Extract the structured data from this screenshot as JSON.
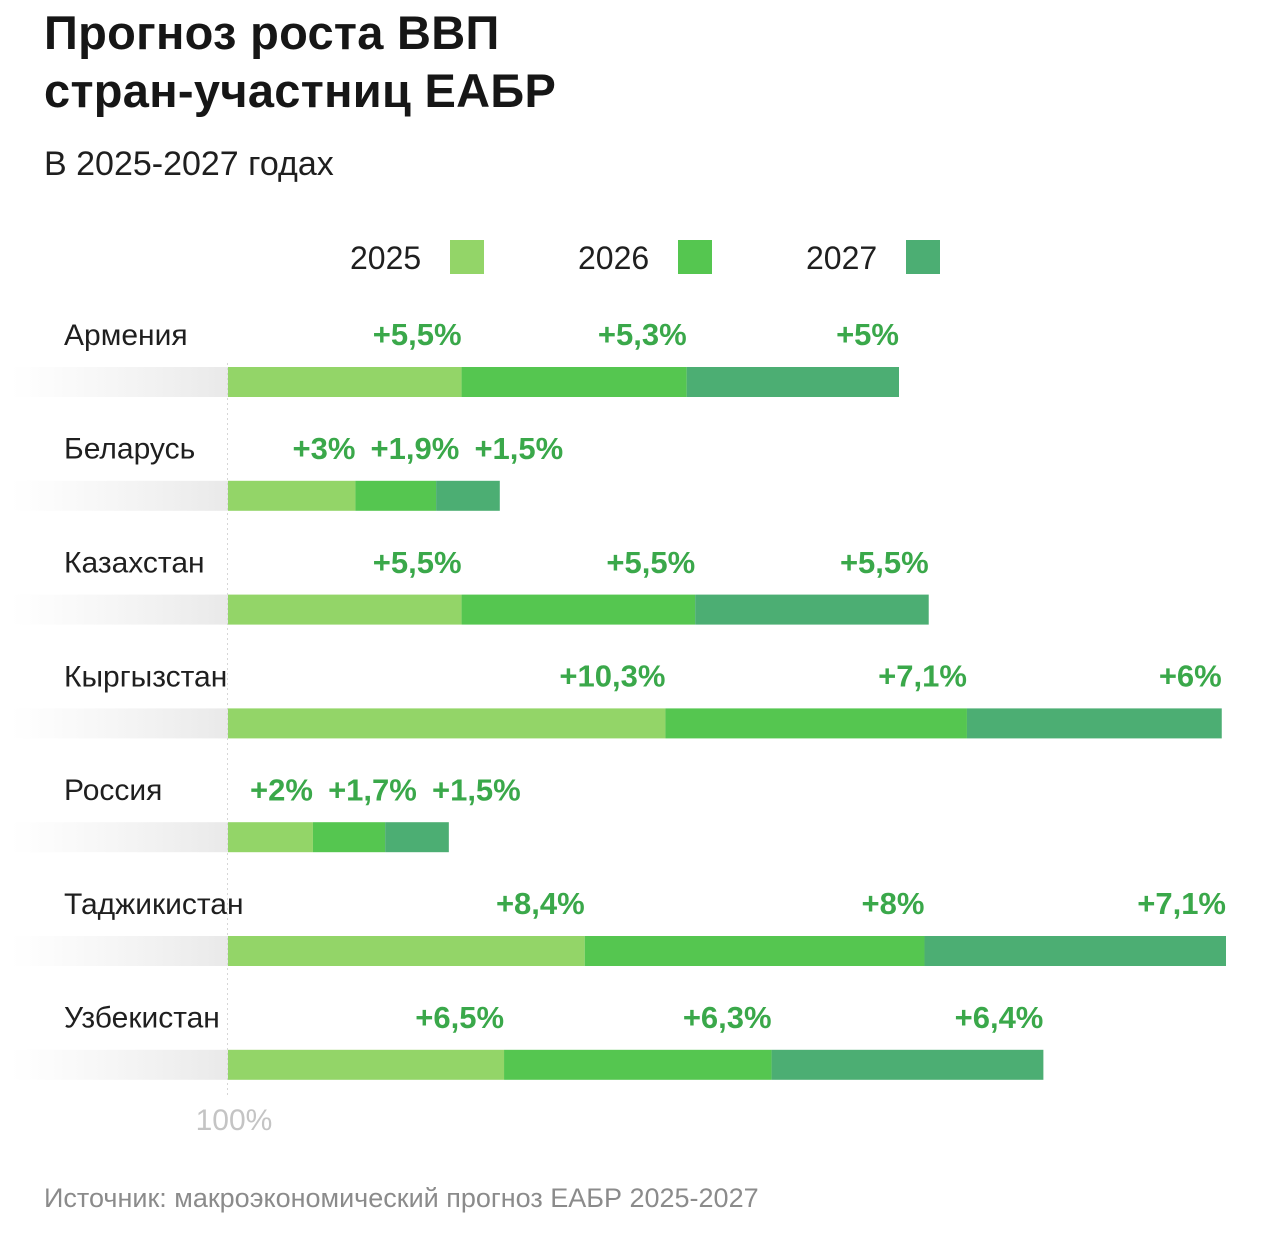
{
  "title_line1": "Прогноз роста ВВП",
  "title_line2": "стран-участниц ЕАБР",
  "subtitle": "В 2025-2027 годах",
  "source": "Источник: макроэкономический прогноз ЕАБР 2025-2027",
  "colors": {
    "2025": "#93d568",
    "2026": "#55c650",
    "2027": "#4cae73",
    "label": "#3aa84a",
    "baseline_label": "#c4c4c4"
  },
  "legend": [
    {
      "label": "2025",
      "color": "#93d568"
    },
    {
      "label": "2026",
      "color": "#55c650"
    },
    {
      "label": "2027",
      "color": "#4cae73"
    }
  ],
  "chart_data": {
    "type": "bar",
    "subtype": "stacked-horizontal",
    "title": "Прогноз роста ВВП стран-участниц ЕАБР",
    "subtitle": "В 2025-2027 годах",
    "baseline_label": "100%",
    "categories": [
      "Армения",
      "Беларусь",
      "Казахстан",
      "Кыргызстан",
      "Россия",
      "Таджикистан",
      "Узбекистан"
    ],
    "series": [
      {
        "name": "2025",
        "color": "#93d568",
        "values": [
          5.5,
          3,
          5.5,
          10.3,
          2,
          8.4,
          6.5
        ],
        "labels": [
          "+5,5%",
          "+3%",
          "+5,5%",
          "+10,3%",
          "+2%",
          "+8,4%",
          "+6,5%"
        ]
      },
      {
        "name": "2026",
        "color": "#55c650",
        "values": [
          5.3,
          1.9,
          5.5,
          7.1,
          1.7,
          8,
          6.3
        ],
        "labels": [
          "+5,3%",
          "+1,9%",
          "+5,5%",
          "+7,1%",
          "+1,7%",
          "+8%",
          "+6,3%"
        ]
      },
      {
        "name": "2027",
        "color": "#4cae73",
        "values": [
          5,
          1.5,
          5.5,
          6,
          1.5,
          7.1,
          6.4
        ],
        "labels": [
          "+5%",
          "+1,5%",
          "+5,5%",
          "+6%",
          "+1,5%",
          "+7,1%",
          "+6,4%"
        ]
      }
    ],
    "legend_position": "top",
    "grid": false
  }
}
